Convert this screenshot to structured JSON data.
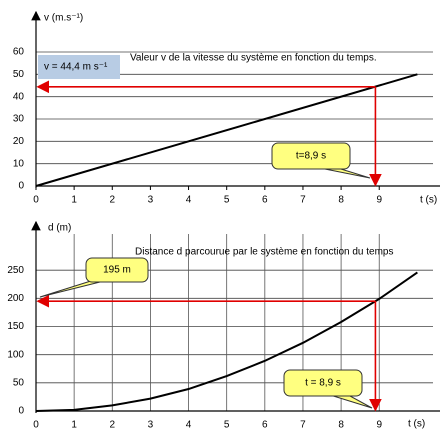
{
  "chart_data": [
    {
      "type": "line",
      "title": "Valeur v de la vitesse du système  en fonction du temps.",
      "ylabel": "v (m.s⁻¹)",
      "xlabel": "t (s)",
      "x": [
        0,
        10
      ],
      "values": [
        0,
        50
      ],
      "color": "#000000",
      "xlim": [
        0,
        10.2
      ],
      "ylim": [
        0,
        60
      ],
      "xticks": [
        0,
        1,
        2,
        3,
        4,
        5,
        6,
        7,
        8,
        9
      ],
      "yticks": [
        0,
        10,
        20,
        30,
        40,
        50,
        60
      ],
      "grid": "y",
      "marker": {
        "x": 8.9,
        "y": 44.4,
        "color": "#e00000"
      },
      "value_box": "v = 44,4 m s⁻¹",
      "callout": "t=8,9 s"
    },
    {
      "type": "line",
      "title": "Distance d parcourue par le système en fonction du temps",
      "ylabel": "d (m)",
      "xlabel": "t (s)",
      "x": [
        0,
        1,
        2,
        3,
        4,
        5,
        6,
        7,
        8,
        9,
        10
      ],
      "values": [
        0,
        2,
        10,
        22,
        39,
        62,
        89,
        121,
        158,
        199,
        246
      ],
      "color": "#000000",
      "xlim": [
        0,
        10.2
      ],
      "ylim": [
        0,
        300
      ],
      "xticks": [
        0,
        1,
        2,
        3,
        4,
        5,
        6,
        7,
        8,
        9
      ],
      "yticks": [
        0,
        50,
        100,
        150,
        200,
        250
      ],
      "grid": "both",
      "marker": {
        "x": 8.9,
        "y": 195,
        "color": "#e00000"
      },
      "value_callout": "195 m",
      "callout": "t = 8,9 s"
    }
  ]
}
